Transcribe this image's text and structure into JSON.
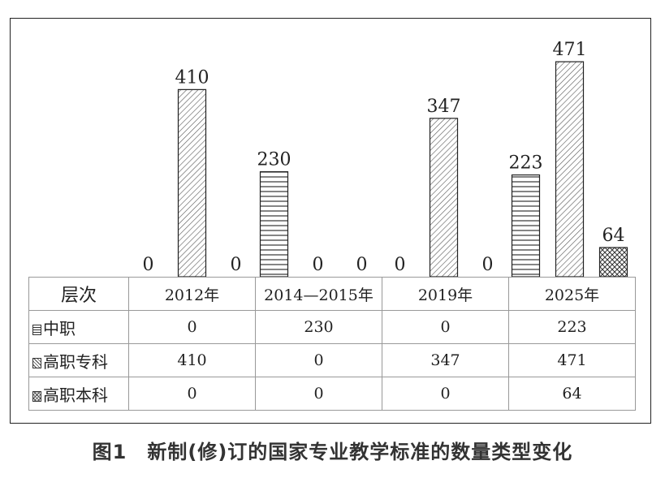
{
  "chart_data": {
    "type": "bar",
    "title": "",
    "categories": [
      "2012年",
      "2014—2015年",
      "2019年",
      "2025年"
    ],
    "series": [
      {
        "name": "中职",
        "values": [
          0,
          230,
          0,
          223
        ],
        "pattern": "horizontal-lines"
      },
      {
        "name": "高职专科",
        "values": [
          410,
          0,
          347,
          471
        ],
        "pattern": "diagonal-lines"
      },
      {
        "name": "高职本科",
        "values": [
          0,
          0,
          0,
          64
        ],
        "pattern": "crosshatch"
      }
    ],
    "ylim": [
      0,
      480
    ],
    "grid": false,
    "legend": "table-below",
    "bar_color": "#222222"
  },
  "table": {
    "corner_label": "层次"
  },
  "caption": "图1　新制(修)订的国家专业教学标准的数量类型变化"
}
